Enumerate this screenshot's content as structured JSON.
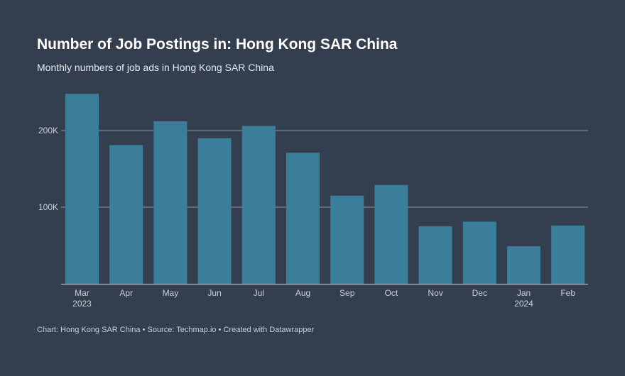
{
  "header": {
    "title": "Number of Job Postings in: Hong Kong SAR China",
    "subtitle": "Monthly numbers of job ads in Hong Kong SAR China"
  },
  "footer": {
    "text": "Chart: Hong Kong SAR China • Source: Techmap.io • Created with Datawrapper"
  },
  "colors": {
    "background": "#333e4f",
    "bar": "#3a7e99",
    "gridline": "#8b94a3",
    "axis_text": "#c9ced6"
  },
  "chart_data": {
    "type": "bar",
    "categories": [
      "Mar",
      "Apr",
      "May",
      "Jun",
      "Jul",
      "Aug",
      "Sep",
      "Oct",
      "Nov",
      "Dec",
      "Jan",
      "Feb"
    ],
    "category_sublabels": [
      "2023",
      "",
      "",
      "",
      "",
      "",
      "",
      "",
      "",
      "",
      "2024",
      ""
    ],
    "values": [
      248000,
      181000,
      212000,
      190000,
      206000,
      171000,
      115000,
      129000,
      75000,
      81000,
      49000,
      76000
    ],
    "yticks": [
      {
        "value": 100000,
        "label": "100K"
      },
      {
        "value": 200000,
        "label": "200K"
      }
    ],
    "ylim": [
      0,
      250000
    ],
    "grid": true
  }
}
